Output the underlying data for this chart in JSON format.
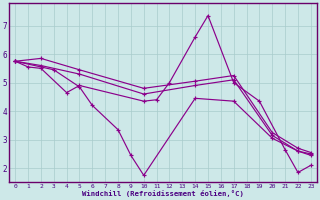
{
  "xlabel": "Windchill (Refroidissement éolien,°C)",
  "ylabel": "",
  "background_color": "#cde8e8",
  "line_color": "#8b008b",
  "xlim": [
    -0.5,
    23.5
  ],
  "ylim": [
    1.5,
    7.8
  ],
  "xticks": [
    0,
    1,
    2,
    3,
    4,
    5,
    6,
    7,
    8,
    9,
    10,
    11,
    12,
    13,
    14,
    15,
    16,
    17,
    18,
    19,
    20,
    21,
    22,
    23
  ],
  "yticks": [
    2,
    3,
    4,
    5,
    6,
    7
  ],
  "lines": [
    {
      "x": [
        0,
        1,
        2,
        4,
        5,
        10,
        11,
        12,
        14,
        15,
        17,
        19,
        21,
        22,
        23
      ],
      "y": [
        5.75,
        5.55,
        5.5,
        4.65,
        4.9,
        4.35,
        4.4,
        5.0,
        6.6,
        7.35,
        5.0,
        4.35,
        2.65,
        1.85,
        2.1
      ]
    },
    {
      "x": [
        0,
        2,
        5,
        10,
        14,
        17,
        20,
        22,
        23
      ],
      "y": [
        5.75,
        5.85,
        5.45,
        4.8,
        5.05,
        5.25,
        3.25,
        2.7,
        2.55
      ]
    },
    {
      "x": [
        0,
        2,
        5,
        10,
        14,
        17,
        20,
        22,
        23
      ],
      "y": [
        5.75,
        5.6,
        5.3,
        4.6,
        4.9,
        5.1,
        3.15,
        2.6,
        2.45
      ]
    },
    {
      "x": [
        0,
        3,
        5,
        6,
        8,
        9,
        10,
        14,
        17,
        20,
        22,
        23
      ],
      "y": [
        5.75,
        5.45,
        4.85,
        4.2,
        3.35,
        2.45,
        1.75,
        4.45,
        4.35,
        3.05,
        2.6,
        2.5
      ]
    }
  ]
}
